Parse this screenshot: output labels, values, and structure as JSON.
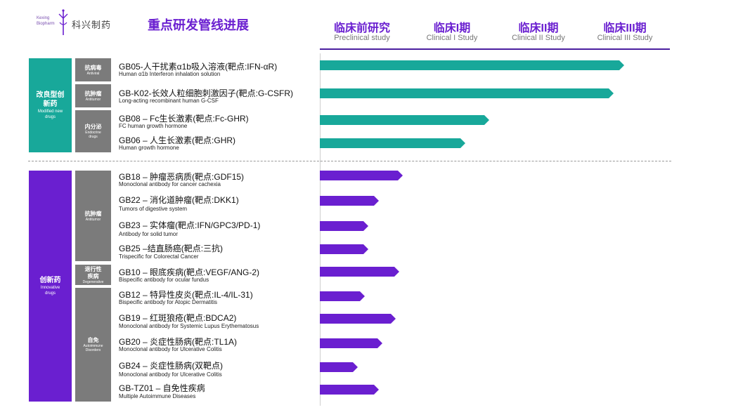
{
  "logo": {
    "en_line1": "Kexing",
    "en_line2": "Biopharm",
    "cn": "科兴制药"
  },
  "title": "重点研发管线进展",
  "phases": [
    {
      "cn": "临床前研究",
      "en": "Preclinical study"
    },
    {
      "cn": "临床I期",
      "en": "Clinical I Study"
    },
    {
      "cn": "临床II期",
      "en": "Clinical II Study"
    },
    {
      "cn": "临床III期",
      "en": "Clinical III Study"
    }
  ],
  "colors": {
    "teal": "#18a89a",
    "purple": "#6a1fd0",
    "gray": "#7b7b7b"
  },
  "groups": [
    {
      "cn": "改良型创新药",
      "en": "Modified new drugs",
      "color": "#18a89a"
    },
    {
      "cn": "创新药",
      "en": "Innovative drugs",
      "color": "#6a1fd0"
    }
  ],
  "subcategories": [
    {
      "cn": "抗病毒",
      "en": "Antiviral"
    },
    {
      "cn": "抗肿瘤",
      "en": "Antitumor"
    },
    {
      "cn": "内分泌",
      "en": "Endocrine drugs"
    },
    {
      "cn": "抗肿瘤",
      "en": "Antitumor"
    },
    {
      "cn": "退行性疾病",
      "en": "Degenerative"
    },
    {
      "cn": "自免",
      "en": "Autoimmune Disorders"
    }
  ],
  "pipeline": [
    {
      "title": "GB05-人干扰素α1b吸入溶液(靶点:IFN-αR)",
      "subtitle": "Human α1b Interferon inhalation solution",
      "progress": 0.88,
      "group": 0
    },
    {
      "title": "GB-K02-长效人粒细胞刺激因子(靶点:G-CSFR)",
      "subtitle": "Long-acting  recombinant human G-CSF",
      "progress": 0.85,
      "group": 0
    },
    {
      "title": "GB08 – Fc生长激素(靶点:Fc-GHR)",
      "subtitle": "FC human growth hormone",
      "progress": 0.49,
      "group": 0
    },
    {
      "title": "GB06 – 人生长激素(靶点:GHR)",
      "subtitle": "Human growth hormone",
      "progress": 0.42,
      "group": 0
    },
    {
      "title": "GB18 – 肿瘤恶病质(靶点:GDF15)",
      "subtitle": "Monoclonal antibody for cancer cachexia",
      "progress": 0.24,
      "group": 1
    },
    {
      "title": "GB22 – 消化道肿瘤(靶点:DKK1)",
      "subtitle": "Tumors of digestive system",
      "progress": 0.17,
      "group": 1
    },
    {
      "title": "GB23 – 实体瘤(靶点:IFN/GPC3/PD-1)",
      "subtitle": "Antibody for solid tumor",
      "progress": 0.14,
      "group": 1
    },
    {
      "title": "GB25 –结直肠癌(靶点:三抗)",
      "subtitle": "Trispecific for Colorectal Cancer",
      "progress": 0.14,
      "group": 1
    },
    {
      "title": "GB10 – 眼底疾病(靶点:VEGF/ANG-2)",
      "subtitle": "Bispecific antibody for ocular fundus",
      "progress": 0.23,
      "group": 1
    },
    {
      "title": "GB12 – 特异性皮炎(靶点:IL-4/IL-31)",
      "subtitle": "Bispecific antibody for Atopic Dermatitis",
      "progress": 0.13,
      "group": 1
    },
    {
      "title": "GB19 – 红斑狼疮(靶点:BDCA2)",
      "subtitle": "Monoclonal antibody for Systemic Lupus Erythematosus",
      "progress": 0.22,
      "group": 1
    },
    {
      "title": "GB20 – 炎症性肠病(靶点:TL1A)",
      "subtitle": "Monoclonal antibody for Ulcerative Colitis",
      "progress": 0.18,
      "group": 1
    },
    {
      "title": "GB24 – 炎症性肠病(双靶点)",
      "subtitle": "Monoclonal antibody for Ulcerative Colitis",
      "progress": 0.11,
      "group": 1
    },
    {
      "title": "GB-TZ01 – 自免性疾病",
      "subtitle": "Multiple Autoimmune Diseases",
      "progress": 0.17,
      "group": 1
    }
  ]
}
